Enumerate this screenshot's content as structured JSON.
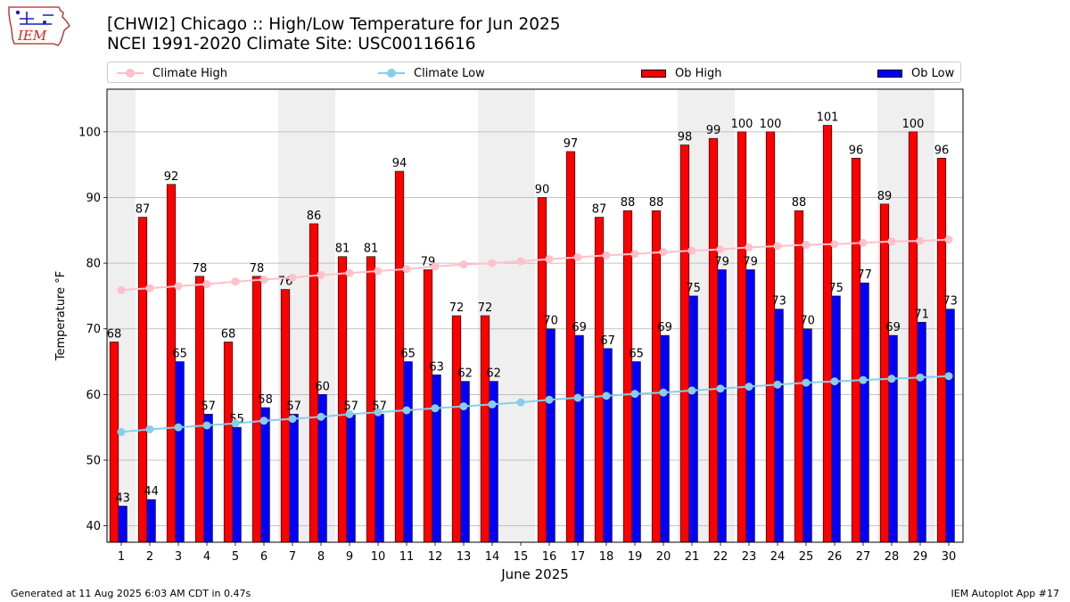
{
  "logo": {
    "text": "IEM"
  },
  "title": {
    "line1": "[CHWI2] Chicago :: High/Low Temperature for Jun 2025",
    "line2": "NCEI 1991-2020 Climate Site: USC00116616"
  },
  "legend": {
    "climate_high": "Climate High",
    "climate_low": "Climate Low",
    "ob_high": "Ob High",
    "ob_low": "Ob Low"
  },
  "colors": {
    "ob_high": "#ff0000",
    "ob_low": "#0000ff",
    "climate_high": "#ffc0cb",
    "climate_low": "#87ceeb",
    "weekend_band": "#efefef",
    "grid": "#b0b0b0"
  },
  "chart_data": {
    "type": "bar",
    "xlabel": "June 2025",
    "ylabel": "Temperature °F",
    "ylim": [
      37.5,
      106.5
    ],
    "yticks": [
      40,
      50,
      60,
      70,
      80,
      90,
      100
    ],
    "grid": "horizontal",
    "legend_position": "top",
    "categories": [
      "1",
      "2",
      "3",
      "4",
      "5",
      "6",
      "7",
      "8",
      "9",
      "10",
      "11",
      "12",
      "13",
      "14",
      "15",
      "16",
      "17",
      "18",
      "19",
      "20",
      "21",
      "22",
      "23",
      "24",
      "25",
      "26",
      "27",
      "28",
      "29",
      "30"
    ],
    "weekend_days": [
      1,
      7,
      8,
      14,
      15,
      21,
      22,
      28,
      29
    ],
    "series": [
      {
        "name": "Ob High",
        "kind": "bar",
        "values": [
          68,
          87,
          92,
          78,
          68,
          78,
          76,
          86,
          81,
          81,
          94,
          79,
          72,
          72,
          null,
          90,
          97,
          87,
          88,
          88,
          98,
          99,
          100,
          100,
          88,
          101,
          96,
          89,
          100,
          96
        ]
      },
      {
        "name": "Ob Low",
        "kind": "bar",
        "values": [
          43,
          44,
          65,
          57,
          55,
          58,
          57,
          60,
          57,
          57,
          65,
          63,
          62,
          62,
          null,
          70,
          69,
          67,
          65,
          69,
          75,
          79,
          79,
          73,
          70,
          75,
          77,
          69,
          71,
          73
        ]
      },
      {
        "name": "Climate High",
        "kind": "line",
        "values": [
          75.9,
          76.2,
          76.5,
          76.8,
          77.2,
          77.5,
          77.8,
          78.2,
          78.5,
          78.8,
          79.1,
          79.5,
          79.8,
          80.0,
          80.3,
          80.6,
          80.9,
          81.2,
          81.4,
          81.7,
          81.9,
          82.1,
          82.4,
          82.6,
          82.8,
          82.9,
          83.1,
          83.3,
          83.4,
          83.6
        ]
      },
      {
        "name": "Climate Low",
        "kind": "line",
        "values": [
          54.3,
          54.7,
          55.0,
          55.3,
          55.6,
          56.0,
          56.3,
          56.6,
          57.0,
          57.3,
          57.6,
          57.9,
          58.2,
          58.5,
          58.8,
          59.2,
          59.5,
          59.8,
          60.1,
          60.3,
          60.6,
          60.9,
          61.2,
          61.5,
          61.8,
          62.0,
          62.2,
          62.4,
          62.6,
          62.8
        ]
      }
    ]
  },
  "footer": {
    "generated": "Generated at 11 Aug 2025 6:03 AM CDT in 0.47s",
    "app": "IEM Autoplot App #17"
  }
}
